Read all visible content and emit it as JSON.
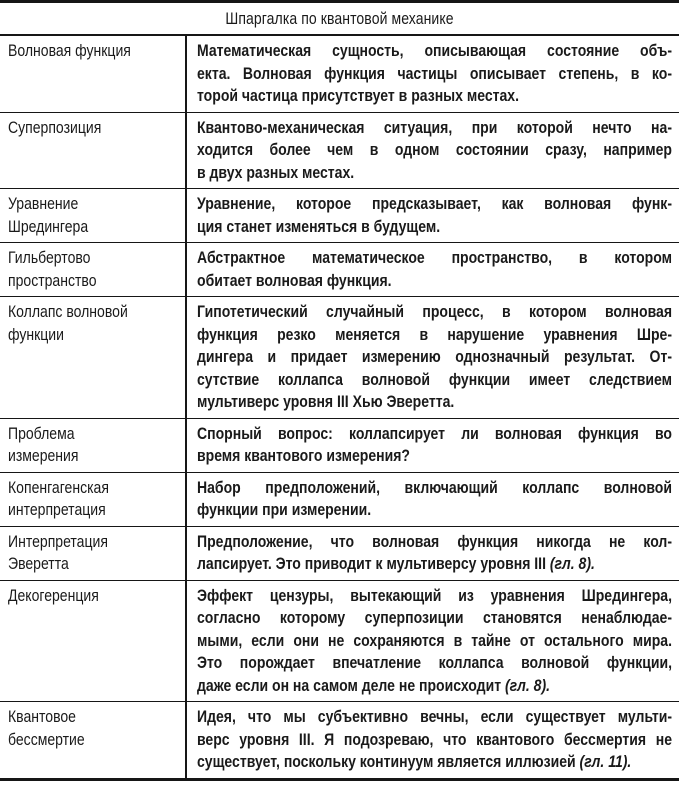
{
  "title": "Шпаргалка по квантовой механике",
  "colors": {
    "text": "#1a1a1a",
    "border": "#161616",
    "background": "#ffffff"
  },
  "rows": [
    {
      "term": "Волновая функция",
      "def_lines": [
        "Математическая сущность, описывающая состояние объ-",
        "екта. Волновая функция частицы описывает степень, в ко-"
      ],
      "def_last": "торой частица присутствует в разных местах.",
      "ref": ""
    },
    {
      "term": "Суперпозиция",
      "def_lines": [
        "Квантово-механическая ситуация, при которой нечто на-",
        "ходится более чем в одном состоянии сразу, например"
      ],
      "def_last": "в двух разных местах.",
      "ref": ""
    },
    {
      "term": "Уравнение\nШредингера",
      "def_lines": [
        "Уравнение, которое предсказывает, как волновая функ-"
      ],
      "def_last": "ция станет изменяться в будущем.",
      "ref": ""
    },
    {
      "term": "Гильбертово\nпространство",
      "def_lines": [
        "Абстрактное математическое пространство, в котором"
      ],
      "def_last": "обитает волновая функция.",
      "ref": ""
    },
    {
      "term": "Коллапс волновой\nфункции",
      "def_lines": [
        "Гипотетический случайный процесс, в котором волновая",
        "функция резко меняется в нарушение уравнения Шре-",
        "дингера и придает измерению однозначный результат. От-",
        "сутствие коллапса волновой функции имеет следствием"
      ],
      "def_last": "мультиверс уровня III Хью Эверетта.",
      "ref": ""
    },
    {
      "term": "Проблема\nизмерения",
      "def_lines": [
        "Спорный вопрос: коллапсирует ли волновая функция во"
      ],
      "def_last": "время квантового измерения?",
      "ref": ""
    },
    {
      "term": "Копенгагенская\nинтерпретация",
      "def_lines": [
        "Набор предположений, включающий коллапс волновой"
      ],
      "def_last": "функции при измерении.",
      "ref": ""
    },
    {
      "term": "Интерпретация\nЭверетта",
      "def_lines": [
        "Предположение, что волновая функция никогда не кол-"
      ],
      "def_last": "лапсирует. Это приводит к мультиверсу уровня III ",
      "ref": "(гл. 8)."
    },
    {
      "term": "Декогеренция",
      "def_lines": [
        "Эффект цензуры, вытекающий из уравнения Шредингера,",
        "согласно которому суперпозиции становятся ненаблюдае-",
        "мыми, если они не сохраняются в тайне от остального мира.",
        "Это порождает впечатление коллапса волновой функции,"
      ],
      "def_last": "даже если он на самом деле не происходит ",
      "ref": "(гл. 8)."
    },
    {
      "term": "Квантовое\nбессмертие",
      "def_lines": [
        "Идея, что мы субъективно вечны, если существует мульти-",
        "верс уровня III. Я подозреваю, что квантового бессмертия не"
      ],
      "def_last": "существует, поскольку континуум является иллюзией ",
      "ref": "(гл. 11)."
    }
  ]
}
